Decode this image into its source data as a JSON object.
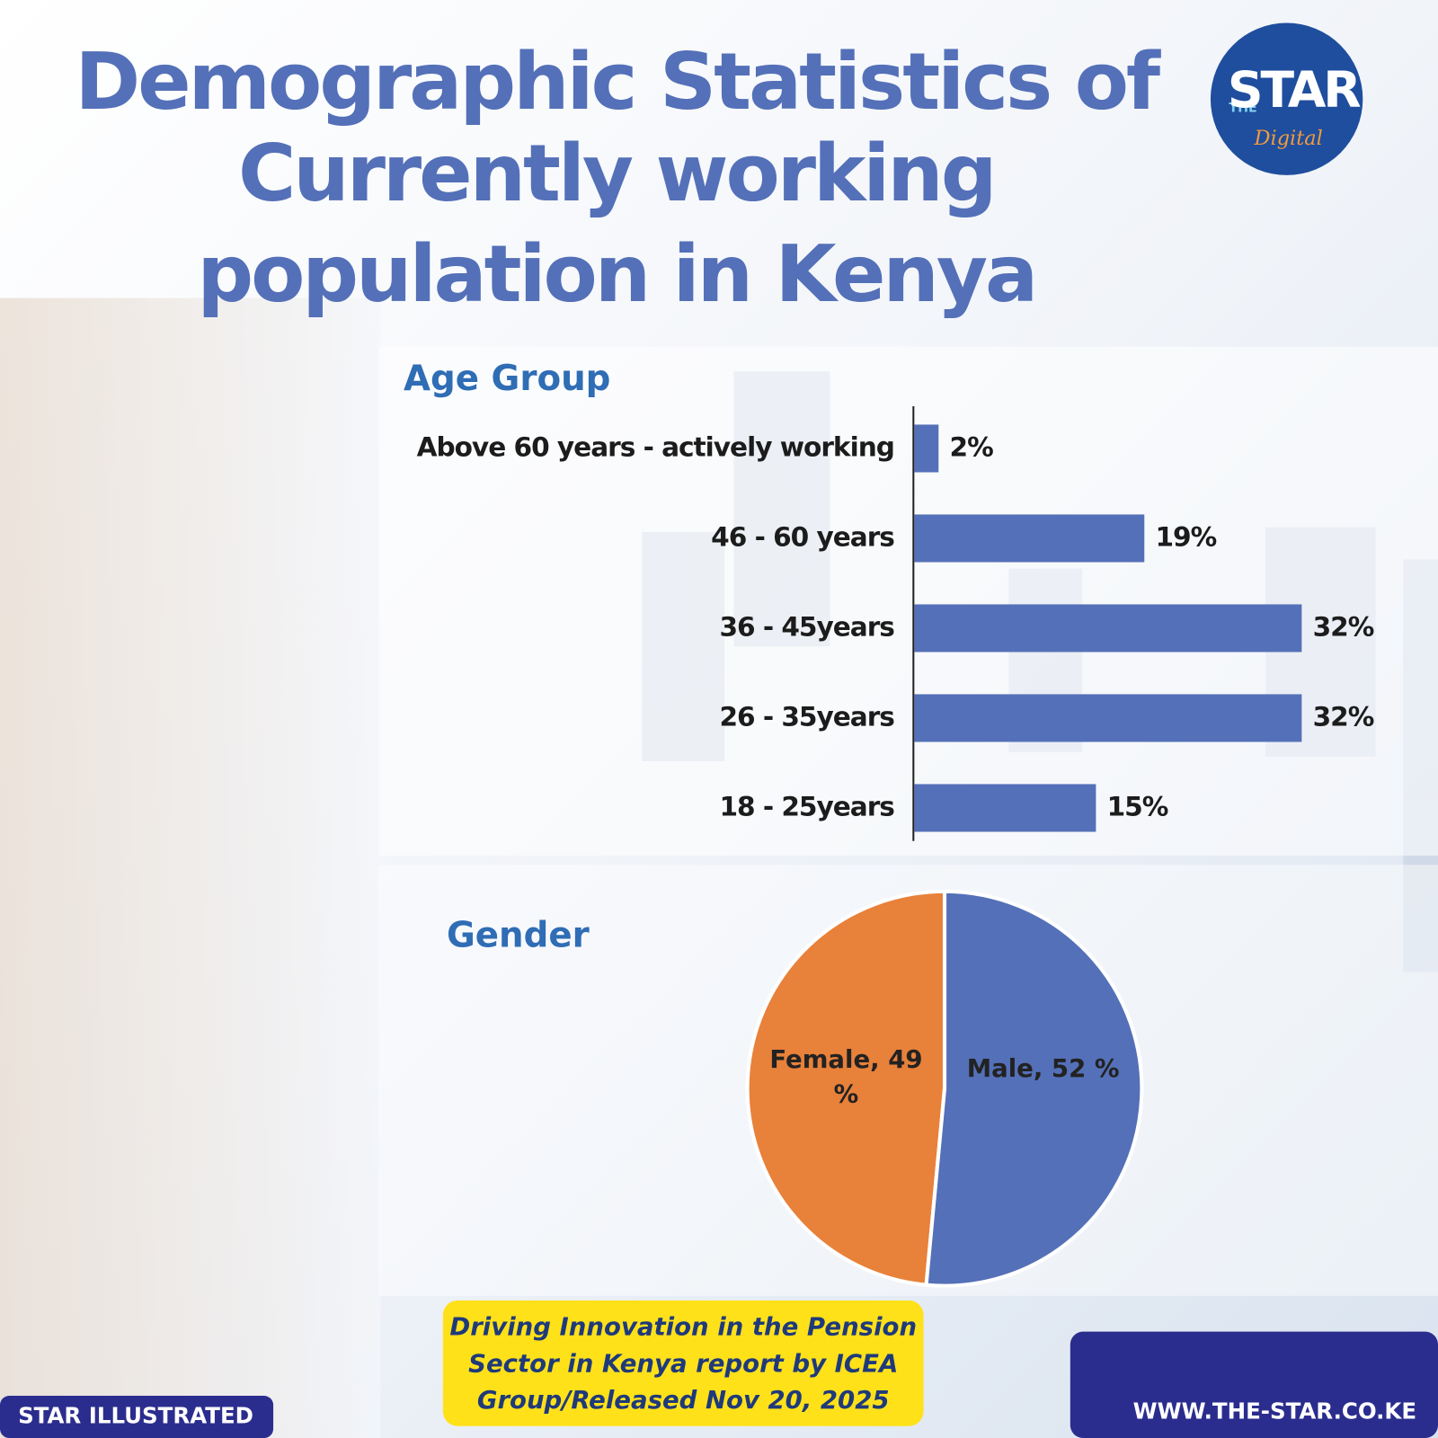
{
  "title_lines": [
    "Demographic Statistics of",
    "Currently working",
    "population in Kenya"
  ],
  "logo": {
    "prefix": "THE",
    "name": "STAR",
    "suffix": "Digital"
  },
  "chart_data": [
    {
      "type": "bar",
      "title": "Age Group",
      "orientation": "horizontal",
      "categories": [
        "Above 60 years - actively working",
        "46 - 60 years",
        "36 - 45years",
        "26 - 35years",
        "18 - 25years"
      ],
      "values": [
        2,
        19,
        32,
        32,
        15
      ],
      "value_labels": [
        "2%",
        "19%",
        "32%",
        "32%",
        "15%"
      ],
      "color": "#5470b8"
    },
    {
      "type": "pie",
      "title": "Gender",
      "values": [
        49,
        52
      ],
      "value_labels": [
        "Female, 49 %",
        "Male, 52 %"
      ],
      "colors": [
        "#e8813a",
        "#5470b8"
      ]
    }
  ],
  "source_lines": [
    "Driving Innovation in the Pension",
    "Sector in Kenya report by ICEA",
    "Group/Released Nov 20, 2025"
  ],
  "footer": {
    "left": "STAR ILLUSTRATED",
    "right": "WWW.THE-STAR.CO.KE"
  }
}
